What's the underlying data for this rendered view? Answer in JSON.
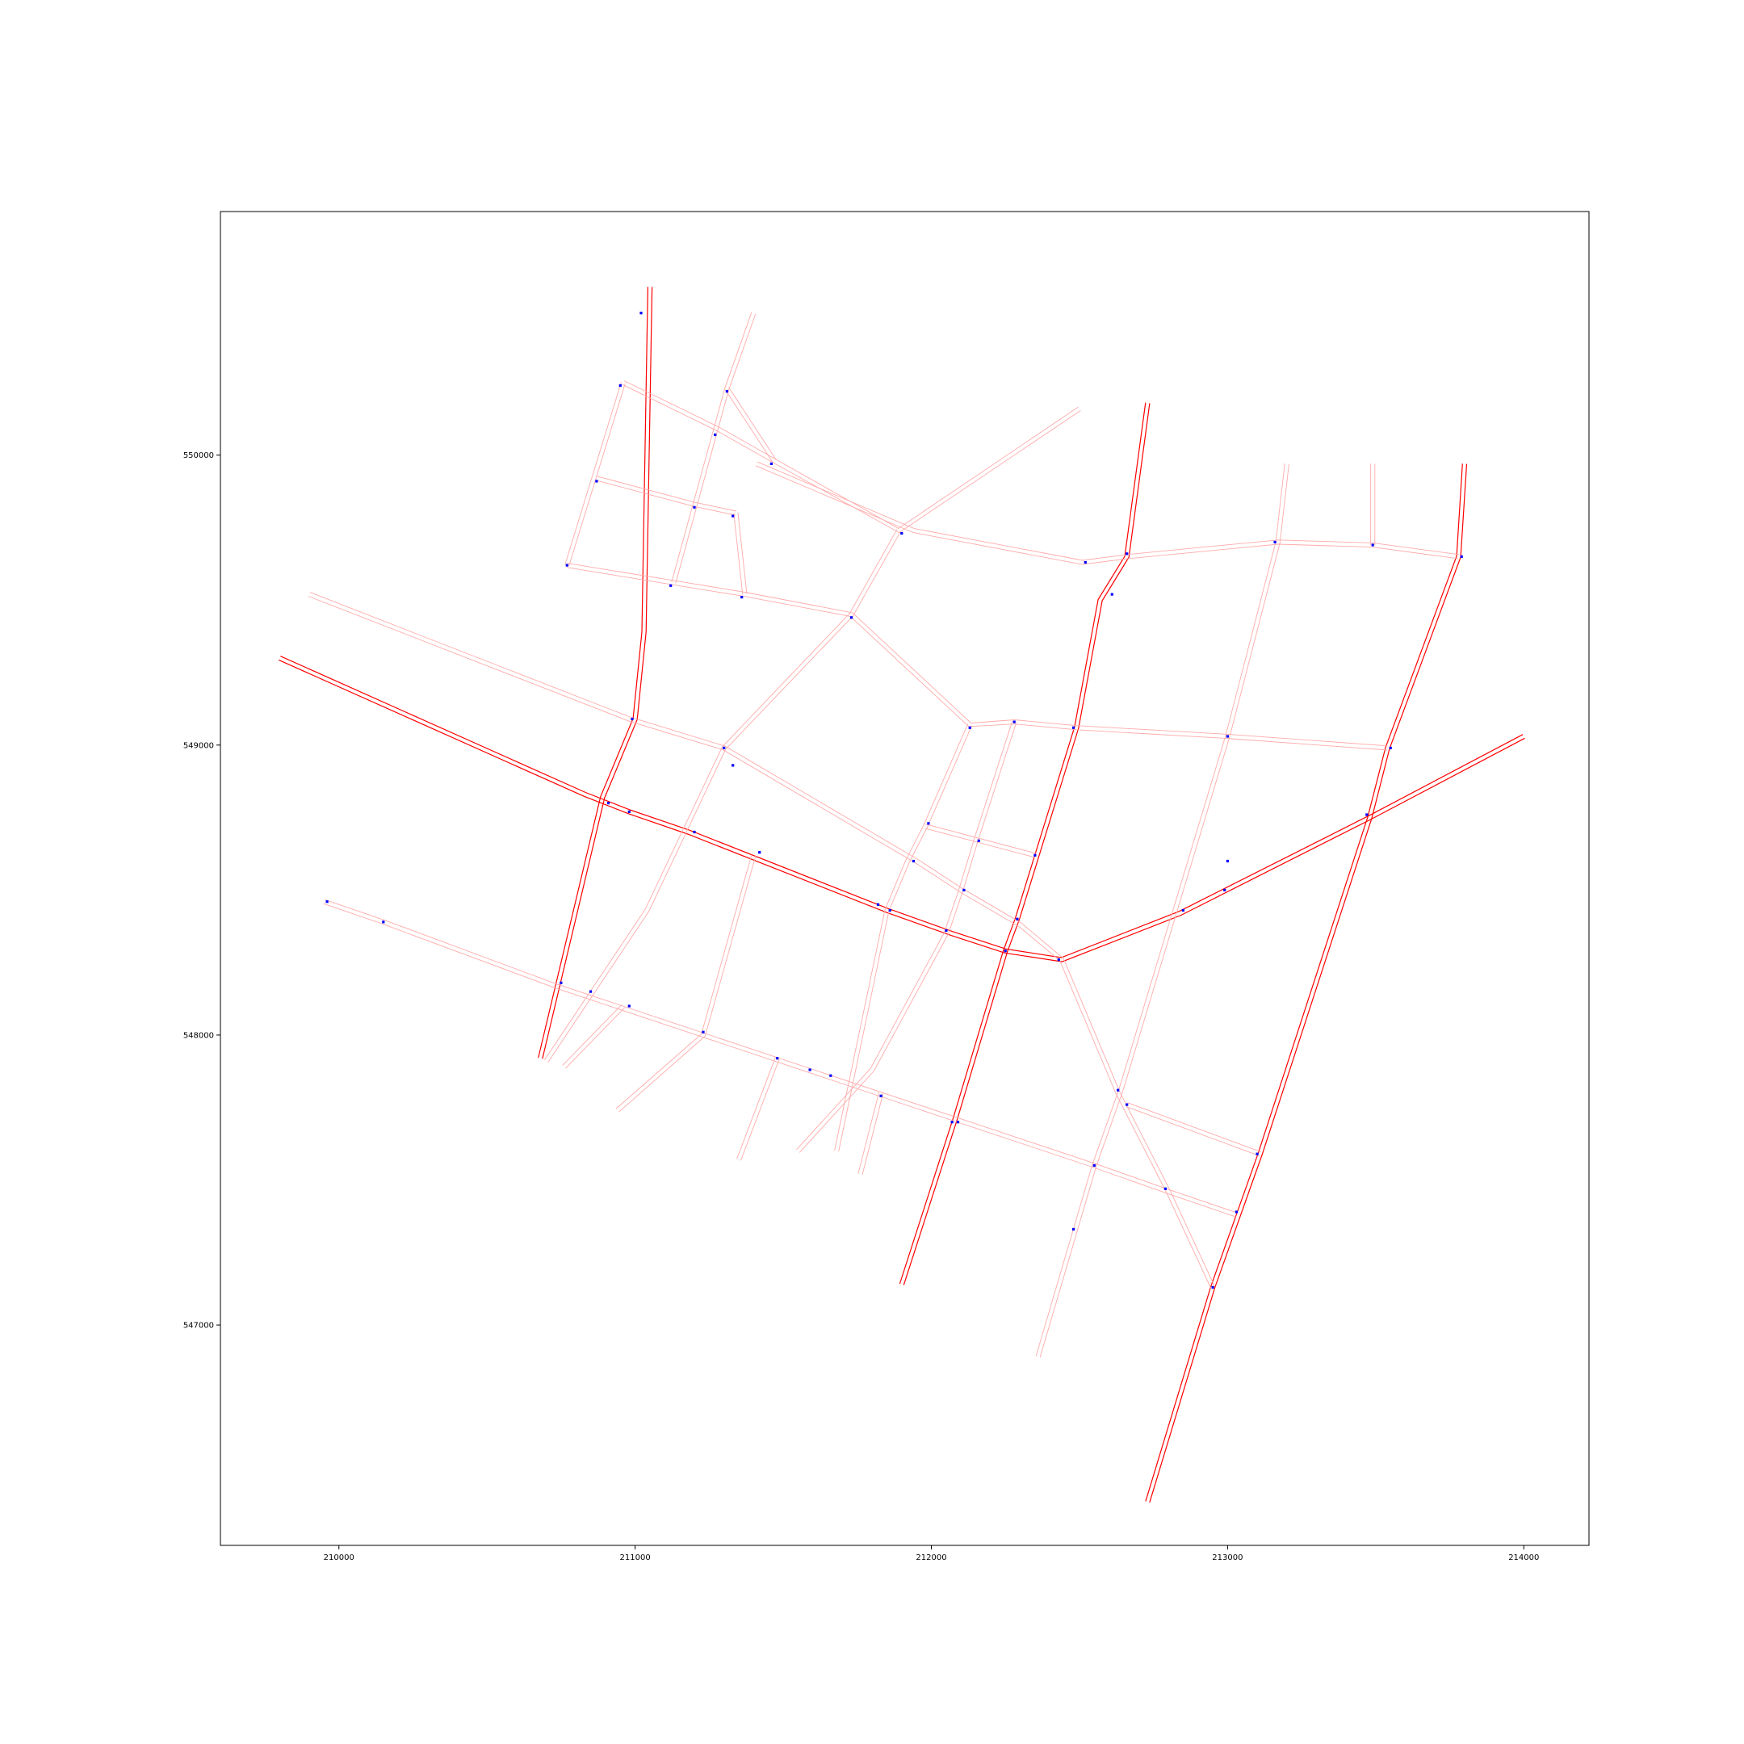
{
  "chart_data": {
    "type": "map",
    "title": "",
    "xlabel": "",
    "ylabel": "",
    "xlim": [
      209600,
      214220
    ],
    "ylim": [
      546240,
      550840
    ],
    "grid": false,
    "x_ticks": [
      {
        "value": 210000,
        "label": "210000"
      },
      {
        "value": 211000,
        "label": "211000"
      },
      {
        "value": 212000,
        "label": "212000"
      },
      {
        "value": 213000,
        "label": "213000"
      },
      {
        "value": 214000,
        "label": "214000"
      }
    ],
    "y_ticks": [
      {
        "value": 547000,
        "label": "547000"
      },
      {
        "value": 548000,
        "label": "548000"
      },
      {
        "value": 549000,
        "label": "549000"
      },
      {
        "value": 550000,
        "label": "550000"
      }
    ],
    "colors": {
      "major_road": "#ff0000",
      "minor_road": "#ffaaaa",
      "node": "#0000ff",
      "frame": "#000000",
      "background": "#ffffff"
    },
    "roads": [
      {
        "class": "major",
        "points": [
          [
            209800,
            549300
          ],
          [
            210830,
            548830
          ],
          [
            210980,
            548770
          ],
          [
            211180,
            548700
          ],
          [
            211850,
            548430
          ],
          [
            212070,
            548350
          ],
          [
            212250,
            548290
          ],
          [
            212440,
            548260
          ],
          [
            212840,
            548420
          ],
          [
            213480,
            548750
          ],
          [
            214000,
            549030
          ]
        ]
      },
      {
        "class": "major",
        "points": [
          [
            210680,
            547920
          ],
          [
            210890,
            548820
          ],
          [
            211000,
            549090
          ],
          [
            211030,
            549390
          ],
          [
            211050,
            550580
          ]
        ]
      },
      {
        "class": "major",
        "points": [
          [
            211900,
            547140
          ],
          [
            212080,
            547710
          ],
          [
            212250,
            548290
          ],
          [
            212290,
            548400
          ],
          [
            212490,
            549060
          ],
          [
            212570,
            549500
          ],
          [
            212660,
            549650
          ],
          [
            212730,
            550180
          ]
        ]
      },
      {
        "class": "major",
        "points": [
          [
            212730,
            546390
          ],
          [
            212950,
            547130
          ],
          [
            213110,
            547590
          ],
          [
            213480,
            548750
          ],
          [
            213540,
            548990
          ],
          [
            213780,
            549650
          ],
          [
            213800,
            549970
          ]
        ]
      },
      {
        "class": "minor",
        "points": [
          [
            209900,
            549520
          ],
          [
            210980,
            549090
          ],
          [
            211300,
            548990
          ],
          [
            211950,
            548600
          ],
          [
            212100,
            548500
          ],
          [
            212300,
            548380
          ],
          [
            212440,
            548260
          ],
          [
            212630,
            547800
          ],
          [
            212800,
            547460
          ],
          [
            212950,
            547130
          ]
        ]
      },
      {
        "class": "minor",
        "points": [
          [
            209950,
            548460
          ],
          [
            210150,
            548390
          ],
          [
            210730,
            548170
          ],
          [
            211230,
            548000
          ],
          [
            212080,
            547710
          ],
          [
            212550,
            547550
          ],
          [
            212800,
            547460
          ],
          [
            213030,
            547380
          ]
        ]
      },
      {
        "class": "minor",
        "points": [
          [
            211410,
            549970
          ],
          [
            211940,
            549740
          ],
          [
            212510,
            549630
          ],
          [
            212660,
            549650
          ],
          [
            213170,
            549700
          ],
          [
            213490,
            549690
          ],
          [
            213780,
            549650
          ]
        ]
      },
      {
        "class": "minor",
        "points": [
          [
            210770,
            549620
          ],
          [
            211130,
            549560
          ],
          [
            211370,
            549520
          ],
          [
            211730,
            549450
          ],
          [
            212130,
            549070
          ],
          [
            212280,
            549080
          ],
          [
            212490,
            549060
          ],
          [
            213000,
            549030
          ],
          [
            213540,
            548990
          ]
        ]
      },
      {
        "class": "minor",
        "points": [
          [
            210960,
            550250
          ],
          [
            211280,
            550090
          ],
          [
            211470,
            549980
          ],
          [
            211890,
            549740
          ],
          [
            212500,
            550160
          ]
        ]
      },
      {
        "class": "minor",
        "points": [
          [
            210870,
            549920
          ],
          [
            211200,
            549830
          ],
          [
            211340,
            549800
          ]
        ]
      },
      {
        "class": "minor",
        "points": [
          [
            210770,
            549620
          ],
          [
            210960,
            550250
          ]
        ]
      },
      {
        "class": "minor",
        "points": [
          [
            211130,
            549560
          ],
          [
            211310,
            550230
          ],
          [
            211400,
            550490
          ]
        ]
      },
      {
        "class": "minor",
        "points": [
          [
            211310,
            550230
          ],
          [
            211470,
            549980
          ]
        ]
      },
      {
        "class": "minor",
        "points": [
          [
            211340,
            549800
          ],
          [
            211370,
            549520
          ]
        ]
      },
      {
        "class": "minor",
        "points": [
          [
            210700,
            547910
          ],
          [
            211040,
            548430
          ],
          [
            211300,
            548990
          ],
          [
            211730,
            549450
          ],
          [
            211890,
            549740
          ]
        ]
      },
      {
        "class": "minor",
        "points": [
          [
            211980,
            548720
          ],
          [
            212350,
            548620
          ]
        ]
      },
      {
        "class": "minor",
        "points": [
          [
            212130,
            549070
          ],
          [
            211980,
            548720
          ],
          [
            211920,
            548600
          ],
          [
            211850,
            548430
          ],
          [
            211680,
            547600
          ]
        ]
      },
      {
        "class": "minor",
        "points": [
          [
            212280,
            549080
          ],
          [
            212150,
            548670
          ],
          [
            212100,
            548500
          ],
          [
            212050,
            548350
          ],
          [
            211800,
            547880
          ],
          [
            211550,
            547600
          ]
        ]
      },
      {
        "class": "minor",
        "points": [
          [
            211400,
            548620
          ],
          [
            211230,
            548000
          ],
          [
            210940,
            547740
          ]
        ]
      },
      {
        "class": "minor",
        "points": [
          [
            210960,
            548100
          ],
          [
            210760,
            547890
          ]
        ]
      },
      {
        "class": "minor",
        "points": [
          [
            211480,
            547920
          ],
          [
            211350,
            547570
          ]
        ]
      },
      {
        "class": "minor",
        "points": [
          [
            211830,
            547800
          ],
          [
            211760,
            547520
          ]
        ]
      },
      {
        "class": "minor",
        "points": [
          [
            212360,
            546890
          ],
          [
            212550,
            547550
          ],
          [
            212640,
            547810
          ],
          [
            213000,
            549030
          ],
          [
            213170,
            549700
          ],
          [
            213200,
            549970
          ]
        ]
      },
      {
        "class": "minor",
        "points": [
          [
            212660,
            547760
          ],
          [
            213110,
            547590
          ]
        ]
      },
      {
        "class": "minor",
        "points": [
          [
            213490,
            549690
          ],
          [
            213490,
            549970
          ]
        ]
      }
    ],
    "nodes": [
      [
        211020,
        550490
      ],
      [
        210950,
        550240
      ],
      [
        211310,
        550220
      ],
      [
        211270,
        550070
      ],
      [
        211460,
        549970
      ],
      [
        210870,
        549910
      ],
      [
        211200,
        549820
      ],
      [
        211330,
        549790
      ],
      [
        211900,
        549730
      ],
      [
        210770,
        549620
      ],
      [
        211120,
        549550
      ],
      [
        211360,
        549510
      ],
      [
        211730,
        549440
      ],
      [
        212520,
        549630
      ],
      [
        212660,
        549660
      ],
      [
        213160,
        549700
      ],
      [
        213490,
        549690
      ],
      [
        213790,
        549650
      ],
      [
        212610,
        549520
      ],
      [
        210990,
        549090
      ],
      [
        211300,
        548990
      ],
      [
        211330,
        548930
      ],
      [
        212130,
        549060
      ],
      [
        212280,
        549080
      ],
      [
        212480,
        549060
      ],
      [
        213000,
        549030
      ],
      [
        213550,
        548990
      ],
      [
        210910,
        548800
      ],
      [
        210980,
        548770
      ],
      [
        211200,
        548700
      ],
      [
        211420,
        548630
      ],
      [
        211990,
        548730
      ],
      [
        212160,
        548670
      ],
      [
        212350,
        548620
      ],
      [
        211940,
        548600
      ],
      [
        213000,
        548600
      ],
      [
        213470,
        548760
      ],
      [
        211820,
        548450
      ],
      [
        211860,
        548430
      ],
      [
        212110,
        548500
      ],
      [
        212290,
        548400
      ],
      [
        212850,
        548430
      ],
      [
        212990,
        548500
      ],
      [
        212050,
        548360
      ],
      [
        212250,
        548290
      ],
      [
        212430,
        548260
      ],
      [
        209960,
        548460
      ],
      [
        210150,
        548390
      ],
      [
        210750,
        548180
      ],
      [
        210850,
        548150
      ],
      [
        210980,
        548100
      ],
      [
        211230,
        548010
      ],
      [
        211480,
        547920
      ],
      [
        211590,
        547880
      ],
      [
        211660,
        547860
      ],
      [
        211830,
        547790
      ],
      [
        212070,
        547700
      ],
      [
        212090,
        547700
      ],
      [
        212630,
        547810
      ],
      [
        212660,
        547760
      ],
      [
        213100,
        547590
      ],
      [
        212550,
        547550
      ],
      [
        212790,
        547470
      ],
      [
        213030,
        547390
      ],
      [
        212480,
        547330
      ],
      [
        212950,
        547130
      ]
    ]
  }
}
